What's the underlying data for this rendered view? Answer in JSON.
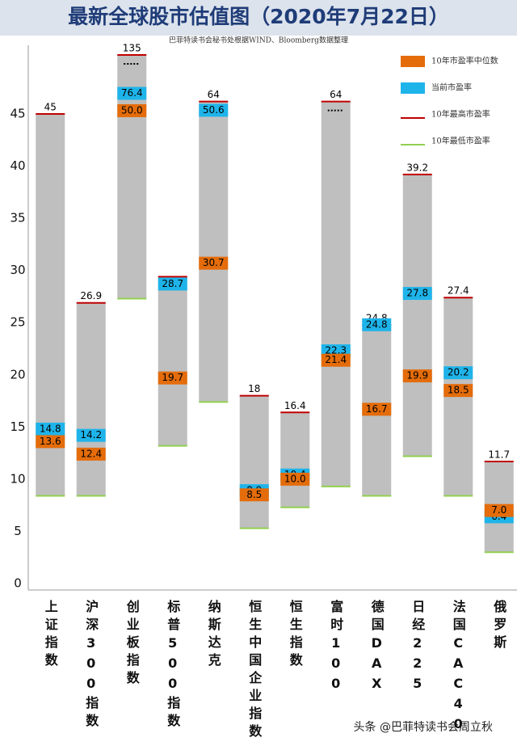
{
  "chart_data": {
    "type": "range",
    "title": "最新全球股市估值图（2020年7月22日）",
    "subtitle": "巴菲特读书会秘书处根据WIND、Bloomberg数据整理",
    "categories": [
      "上证指数",
      "沪深300指数",
      "创业板指数",
      "标普500指数",
      "纳斯达克",
      "恒生中国企业指数",
      "恒生指数",
      "富时100",
      "德国DAX",
      "日经225",
      "法国CAC40",
      "俄罗斯"
    ],
    "bar_color": "#bfbfbf",
    "ylim": [
      0,
      135
    ],
    "axis_break": 45,
    "yticks": [
      0,
      5,
      10,
      15,
      20,
      25,
      30,
      35,
      40,
      45
    ],
    "series": [
      {
        "name": "10年市盈率中位数",
        "color": "#e46c0a",
        "values": [
          13.6,
          12.4,
          50.0,
          19.7,
          30.7,
          8.5,
          10.0,
          21.4,
          16.7,
          19.9,
          18.5,
          7.0
        ],
        "value_labels": [
          "13.6",
          "12.4",
          "50.0",
          "19.7",
          "30.7",
          "8.5",
          "10.0",
          "21.4",
          "16.7",
          "19.9",
          "18.5",
          "7.0"
        ]
      },
      {
        "name": "当前市盈率",
        "color": "#1eb4ea",
        "values": [
          14.8,
          14.2,
          76.4,
          28.7,
          50.6,
          8.9,
          10.4,
          22.3,
          24.8,
          27.8,
          20.2,
          6.4
        ],
        "value_labels": [
          "14.8",
          "14.2",
          "76.4",
          "28.7",
          "50.6",
          "8.9",
          "10.4",
          "22.3",
          "24.8",
          "27.8",
          "20.2",
          "6.4"
        ]
      },
      {
        "name": "10年最高市盈率",
        "color": "#c00000",
        "values": [
          45,
          26.9,
          135,
          29.4,
          64,
          18,
          16.4,
          64,
          24.8,
          39.2,
          27.4,
          11.7
        ],
        "value_labels": [
          "45",
          "26.9",
          "135",
          null,
          "64",
          "18",
          "16.4",
          "64",
          "24.8",
          "39.2",
          "27.4",
          "11.7"
        ]
      },
      {
        "name": "10年最低市盈率",
        "color": "#92d050",
        "values": [
          8.4,
          8.4,
          27.3,
          13.2,
          17.4,
          5.3,
          7.3,
          9.3,
          8.4,
          12.2,
          8.4,
          3.0
        ]
      }
    ]
  },
  "watermark": "头条 @巴菲特读书会周立秋"
}
